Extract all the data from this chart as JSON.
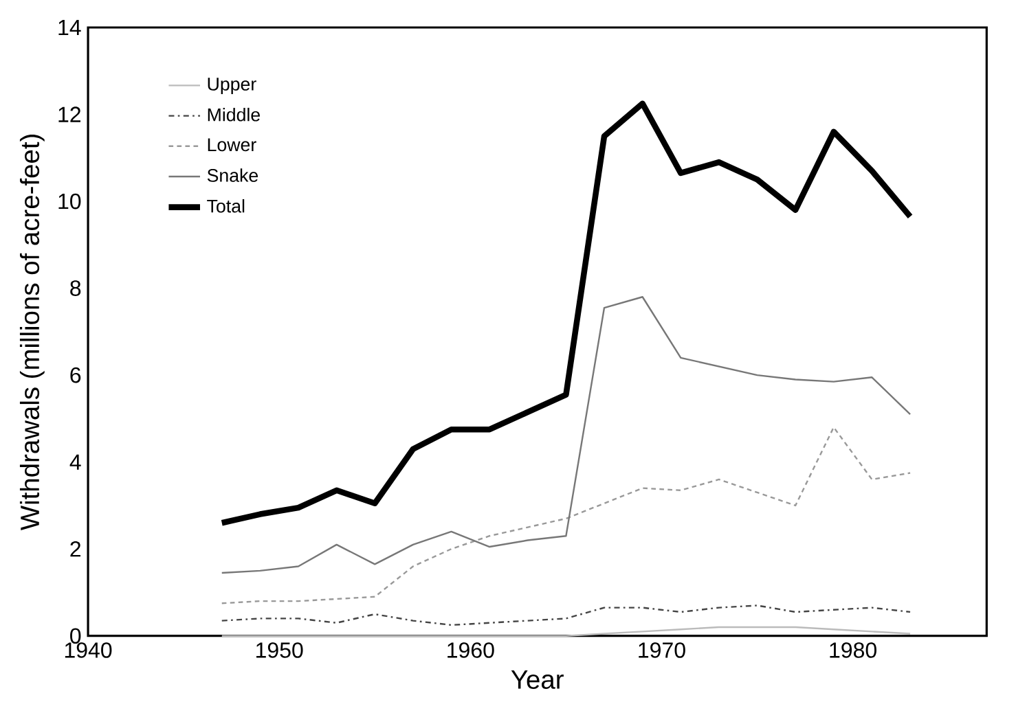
{
  "chart_data": {
    "type": "line",
    "xlabel": "Year",
    "ylabel": "Withdrawals (millions of acre-feet)",
    "x": [
      1947,
      1949,
      1951,
      1953,
      1955,
      1957,
      1959,
      1961,
      1963,
      1965,
      1967,
      1969,
      1971,
      1973,
      1975,
      1977,
      1979,
      1981,
      1983
    ],
    "series": [
      {
        "name": "Upper",
        "color": "#bbbbbb",
        "line_style": "solid",
        "values": [
          0,
          0,
          0,
          0,
          0,
          0,
          0,
          0,
          0,
          0,
          0.05,
          0.1,
          0.15,
          0.2,
          0.2,
          0.2,
          0.15,
          0.1,
          0.05
        ]
      },
      {
        "name": "Middle",
        "color": "#444444",
        "line_style": "dashed",
        "values": [
          0.35,
          0.4,
          0.4,
          0.3,
          0.5,
          0.35,
          0.25,
          0.3,
          0.35,
          0.4,
          0.65,
          0.65,
          0.55,
          0.65,
          0.7,
          0.55,
          0.6,
          0.65,
          0.55
        ]
      },
      {
        "name": "Lower",
        "color": "#999999",
        "line_style": "dotted",
        "values": [
          0.75,
          0.8,
          0.8,
          0.85,
          0.9,
          1.6,
          2.0,
          2.3,
          2.5,
          2.7,
          3.05,
          3.4,
          3.35,
          3.6,
          3.3,
          3.0,
          4.8,
          3.6,
          3.75
        ]
      },
      {
        "name": "Snake",
        "color": "#777777",
        "line_style": "solid",
        "values": [
          1.45,
          1.5,
          1.6,
          2.1,
          1.65,
          2.1,
          2.4,
          2.05,
          2.2,
          2.3,
          7.55,
          7.8,
          6.4,
          6.2,
          6.0,
          5.9,
          5.85,
          5.95,
          5.1
        ]
      },
      {
        "name": "Total",
        "color": "#000000",
        "line_style": "solid",
        "values": [
          2.6,
          2.8,
          2.95,
          3.35,
          3.05,
          4.3,
          4.75,
          4.75,
          5.15,
          5.55,
          11.5,
          12.25,
          10.65,
          10.9,
          10.5,
          9.8,
          11.6,
          10.7,
          9.65
        ]
      }
    ],
    "xlim": [
      1940,
      1987
    ],
    "xticks": [
      1940,
      1950,
      1960,
      1970,
      1980
    ],
    "ylim": [
      0,
      14
    ],
    "yticks": [
      0,
      2,
      4,
      6,
      8,
      10,
      12,
      14
    ],
    "grid": false,
    "legend": "top left",
    "marker": "none"
  }
}
